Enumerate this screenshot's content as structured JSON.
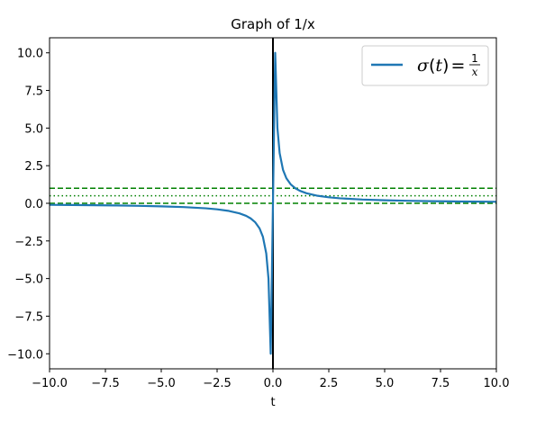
{
  "chart_data": {
    "type": "line",
    "title": "Graph of 1/x",
    "xlabel": "t",
    "ylabel": "",
    "xlim": [
      -10,
      10
    ],
    "ylim": [
      -11,
      11
    ],
    "xticks": [
      -10,
      -7.5,
      -5,
      -2.5,
      0,
      2.5,
      5,
      7.5,
      10
    ],
    "xtick_labels": [
      "−10.0",
      "−7.5",
      "−5.0",
      "−2.5",
      "0.0",
      "2.5",
      "5.0",
      "7.5",
      "10.0"
    ],
    "yticks": [
      10,
      7.5,
      5,
      2.5,
      0,
      -2.5,
      -5,
      -7.5,
      -10
    ],
    "ytick_labels": [
      "10.0",
      "7.5",
      "5.0",
      "2.5",
      "0.0",
      "−2.5",
      "−5.0",
      "−7.5",
      "−10.0"
    ],
    "grid": false,
    "legend_position": "top-right",
    "series": [
      {
        "name": "σ(t) = 1/x",
        "color": "#1f77b4",
        "function": "1/x",
        "x": [
          -10,
          -9,
          -8,
          -7,
          -6,
          -5,
          -4,
          -3,
          -2.5,
          -2,
          -1.5,
          -1.2,
          -1,
          -0.8,
          -0.6,
          -0.45,
          -0.3,
          -0.2,
          -0.1,
          0.1,
          0.2,
          0.3,
          0.45,
          0.6,
          0.8,
          1,
          1.2,
          1.5,
          2,
          2.5,
          3,
          4,
          5,
          6,
          7,
          8,
          9,
          10
        ],
        "y": [
          -0.1,
          -0.111,
          -0.125,
          -0.143,
          -0.167,
          -0.2,
          -0.25,
          -0.333,
          -0.4,
          -0.5,
          -0.667,
          -0.833,
          -1,
          -1.25,
          -1.667,
          -2.222,
          -3.333,
          -5,
          -10,
          10,
          5,
          3.333,
          2.222,
          1.667,
          1.25,
          1,
          0.833,
          0.667,
          0.5,
          0.4,
          0.333,
          0.25,
          0.2,
          0.167,
          0.143,
          0.125,
          0.111,
          0.1
        ]
      }
    ],
    "reference_lines": [
      {
        "orientation": "horizontal",
        "y": 1,
        "style": "dashed",
        "color": "#008000"
      },
      {
        "orientation": "horizontal",
        "y": 0.5,
        "style": "dotted",
        "color": "#008000"
      },
      {
        "orientation": "horizontal",
        "y": 0,
        "style": "dashed",
        "color": "#008000"
      },
      {
        "orientation": "vertical",
        "x": 0,
        "style": "solid",
        "color": "#000000"
      }
    ],
    "legend": {
      "sigma": "σ",
      "t": "t",
      "paren_open": "(",
      "paren_close": ")",
      "equals": "=",
      "numerator": "1",
      "denominator": "x"
    }
  }
}
